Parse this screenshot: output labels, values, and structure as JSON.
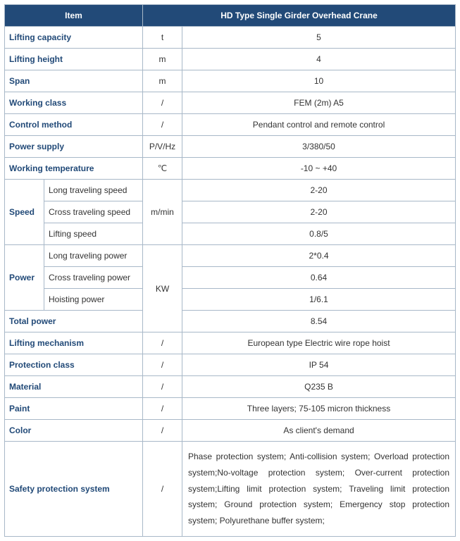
{
  "colors": {
    "header_bg": "#224a78",
    "header_text": "#ffffff",
    "border": "#a8b8c8",
    "label": "#224a78",
    "body_text": "#333333",
    "background": "#ffffff"
  },
  "typography": {
    "font_family": "Verdana, Geneva, sans-serif",
    "font_size_pt": 9
  },
  "table": {
    "header": {
      "item": "Item",
      "title": "HD Type Single Girder Overhead Crane"
    },
    "rows": {
      "lifting_capacity": {
        "label": "Lifting capacity",
        "unit": "t",
        "value": "5"
      },
      "lifting_height": {
        "label": "Lifting height",
        "unit": "m",
        "value": "4"
      },
      "span": {
        "label": "Span",
        "unit": "m",
        "value": "10"
      },
      "working_class": {
        "label": "Working class",
        "unit": "/",
        "value": "FEM (2m) A5"
      },
      "control_method": {
        "label": "Control method",
        "unit": "/",
        "value": "Pendant control and remote control"
      },
      "power_supply": {
        "label": "Power supply",
        "unit": "P/V/Hz",
        "value": "3/380/50"
      },
      "working_temperature": {
        "label": "Working temperature",
        "unit": "℃",
        "value": "-10 ~ +40"
      },
      "speed": {
        "group_label": "Speed",
        "unit": "m/min",
        "long_traveling": {
          "label": "Long traveling speed",
          "value": "2-20"
        },
        "cross_traveling": {
          "label": "Cross traveling speed",
          "value": "2-20"
        },
        "lifting": {
          "label": "Lifting speed",
          "value": "0.8/5"
        }
      },
      "power": {
        "group_label": "Power",
        "unit": "KW",
        "long_traveling": {
          "label": "Long traveling power",
          "value": "2*0.4"
        },
        "cross_traveling": {
          "label": "Cross traveling power",
          "value": "0.64"
        },
        "hoisting": {
          "label": "Hoisting power",
          "value": "1/6.1"
        }
      },
      "total_power": {
        "label": "Total power",
        "value": "8.54"
      },
      "lifting_mechanism": {
        "label": "Lifting mechanism",
        "unit": "/",
        "value": "European type Electric wire rope hoist"
      },
      "protection_class": {
        "label": "Protection class",
        "unit": "/",
        "value": "IP 54"
      },
      "material": {
        "label": "Material",
        "unit": "/",
        "value": "Q235 B"
      },
      "paint": {
        "label": "Paint",
        "unit": "/",
        "value": "Three layers; 75-105 micron thickness"
      },
      "color": {
        "label": "Color",
        "unit": "/",
        "value": "As client's demand"
      },
      "safety": {
        "label": "Safety protection system",
        "unit": "/",
        "value": "Phase protection system; Anti-collision system; Overload protection system;No-voltage protection system; Over-current protection system;Lifting limit protection system; Traveling limit protection system; Ground protection system; Emergency stop protection system; Polyurethane buffer system;"
      }
    }
  }
}
